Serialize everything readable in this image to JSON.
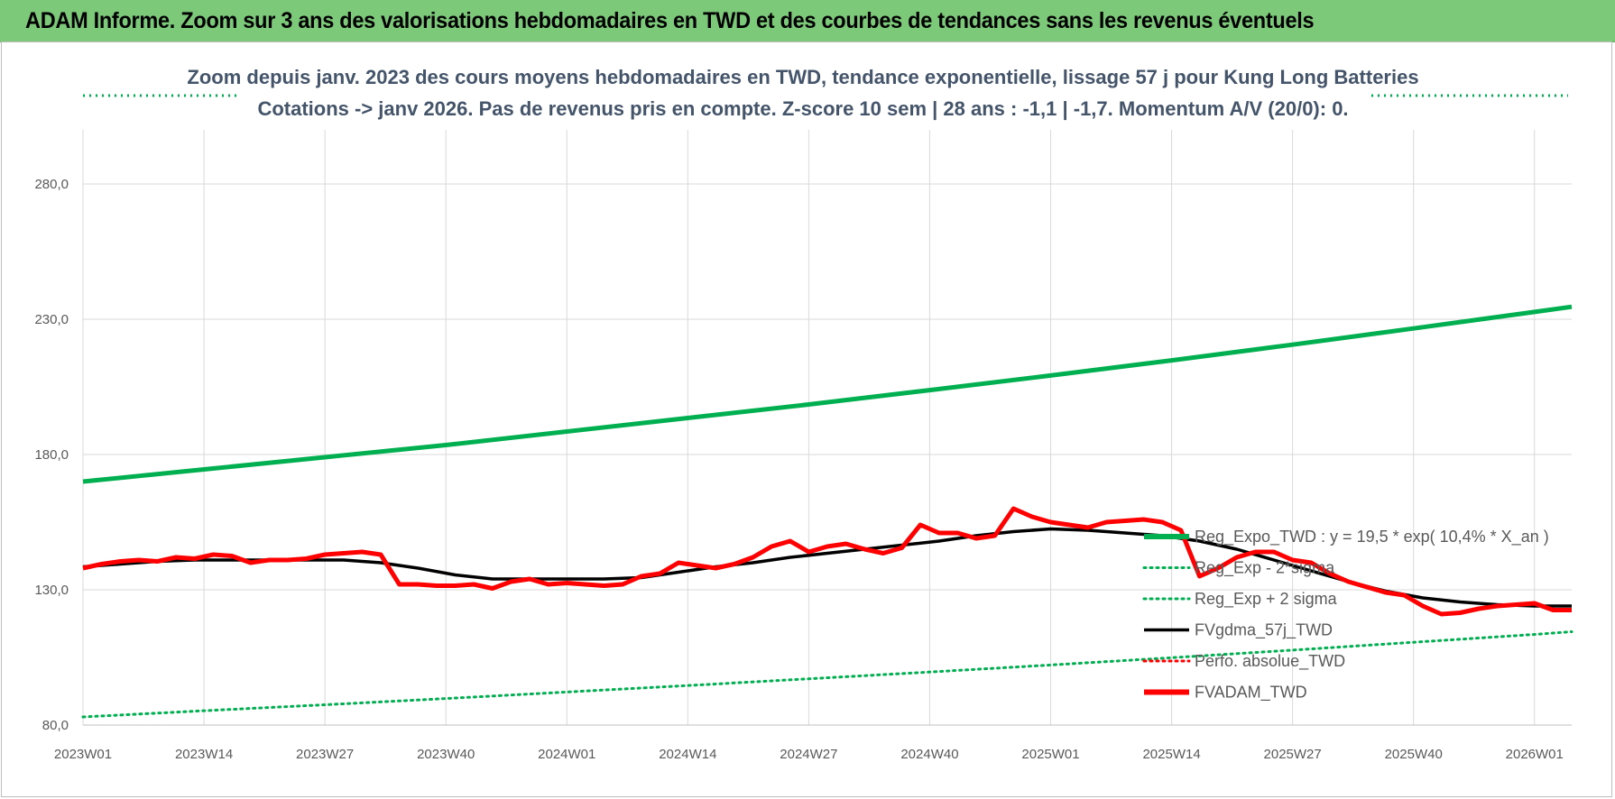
{
  "header": {
    "title": "ADAM Informe. Zoom sur 3 ans des valorisations hebdomadaires en TWD et des courbes de tendances sans les revenus éventuels"
  },
  "colors": {
    "header_bg": "#7dc97a",
    "green": "#00b050",
    "red": "#ff0000",
    "black": "#000000",
    "title_text": "#44546a"
  },
  "chart_data": {
    "type": "line",
    "title_lines": [
      "Zoom depuis janv. 2023 des cours moyens hebdomadaires en TWD, tendance exponentielle, lissage 57 j pour Kung Long Batteries",
      "Cotations -> janv 2026. Pas de revenus pris en compte. Z-score 10 sem | 28 ans : -1,1 | -1,7. Momentum A/V (20/0): 0."
    ],
    "ylim": [
      80,
      300
    ],
    "yticks": [
      80,
      130,
      180,
      230,
      280
    ],
    "ytick_labels": [
      "80,0",
      "130,0",
      "180,0",
      "230,0",
      "280,0"
    ],
    "xlim": [
      0,
      160
    ],
    "xticks": [
      0,
      13,
      26,
      39,
      52,
      65,
      78,
      91,
      104,
      117,
      130,
      143,
      156
    ],
    "xtick_labels": [
      "2023W01",
      "2023W14",
      "2023W27",
      "2023W40",
      "2024W01",
      "2024W14",
      "2024W27",
      "2024W40",
      "2025W01",
      "2025W14",
      "2025W27",
      "2025W40",
      "2026W01"
    ],
    "series": [
      {
        "name": "Reg_Expo_TWD : y = 19,5 * exp( 10,4% *  X_an )",
        "style": "solid-thick",
        "color": "#00b050",
        "x": [
          0,
          13,
          26,
          39,
          52,
          65,
          78,
          91,
          104,
          117,
          130,
          143,
          156,
          160
        ],
        "y": [
          170,
          174.5,
          179,
          183.5,
          188.5,
          193.5,
          198.5,
          203.8,
          209.2,
          214.8,
          220.6,
          226.6,
          232.7,
          234.6
        ]
      },
      {
        "name": "Reg_Exp - 2*sigma",
        "style": "dotted",
        "color": "#00b050",
        "x": [
          0,
          13,
          26,
          39,
          52,
          65,
          78,
          91,
          104,
          117,
          130,
          143,
          156,
          160
        ],
        "y": [
          83,
          85.3,
          87.5,
          89.8,
          92.2,
          94.6,
          97.1,
          99.6,
          102.2,
          104.9,
          107.7,
          110.6,
          113.5,
          114.5
        ]
      },
      {
        "name": "Reg_Exp + 2 sigma",
        "style": "dotted",
        "color": "#00b050",
        "x": [],
        "y": []
      },
      {
        "name": "FVgdma_57j_TWD",
        "style": "solid",
        "color": "#000000",
        "x": [
          0,
          4,
          8,
          12,
          16,
          20,
          24,
          28,
          32,
          36,
          40,
          44,
          48,
          52,
          56,
          60,
          64,
          68,
          72,
          76,
          80,
          84,
          88,
          92,
          96,
          100,
          104,
          108,
          112,
          116,
          120,
          124,
          128,
          132,
          136,
          140,
          144,
          148,
          152,
          156,
          160
        ],
        "y": [
          138.5,
          139.5,
          140.5,
          141,
          141,
          141,
          141,
          141,
          140,
          138,
          135.5,
          134,
          134,
          134,
          134,
          134.5,
          136.5,
          138.5,
          140,
          142,
          143.5,
          145,
          146.5,
          148,
          150,
          151.5,
          152.5,
          152,
          151,
          150,
          148,
          145,
          141,
          137,
          133,
          129.5,
          127,
          125.5,
          124.5,
          124,
          124
        ]
      },
      {
        "name": "Perfo. absolue_TWD",
        "style": "dotted",
        "color": "#ff0000",
        "x": [],
        "y": []
      },
      {
        "name": "FVADAM_TWD",
        "style": "solid-thick",
        "color": "#ff0000",
        "x": [
          0,
          2,
          4,
          6,
          8,
          10,
          12,
          14,
          16,
          18,
          20,
          22,
          24,
          26,
          28,
          30,
          32,
          34,
          36,
          38,
          40,
          42,
          44,
          46,
          48,
          50,
          52,
          54,
          56,
          58,
          60,
          62,
          64,
          66,
          68,
          70,
          72,
          74,
          76,
          78,
          80,
          82,
          84,
          86,
          88,
          90,
          92,
          94,
          96,
          98,
          100,
          102,
          104,
          106,
          108,
          110,
          112,
          114,
          116,
          118,
          120,
          122,
          124,
          126,
          128,
          130,
          132,
          134,
          136,
          138,
          140,
          142,
          144,
          146,
          148,
          150,
          152,
          154,
          156,
          158,
          160
        ],
        "y": [
          138,
          139.5,
          140.5,
          141,
          140.5,
          142,
          141.5,
          143,
          142.5,
          140,
          141,
          141,
          141.5,
          143,
          143.5,
          144,
          143,
          132,
          132,
          131.5,
          131.5,
          132,
          130.5,
          133,
          134,
          132,
          132.5,
          132,
          131.5,
          132,
          135,
          136,
          140,
          139,
          138,
          139.5,
          142,
          146,
          148,
          144,
          146,
          147,
          145,
          143.5,
          145.5,
          154,
          151,
          151,
          149,
          150,
          160,
          157,
          155,
          154,
          153,
          155,
          155.5,
          156,
          155,
          152,
          135,
          138,
          142,
          144,
          144,
          141,
          140,
          136,
          133,
          131,
          129,
          128,
          124,
          121,
          121.5,
          123,
          124,
          124.5,
          125,
          122.5,
          122.5
        ]
      }
    ],
    "legend_position": "right-middle",
    "grid": true
  }
}
